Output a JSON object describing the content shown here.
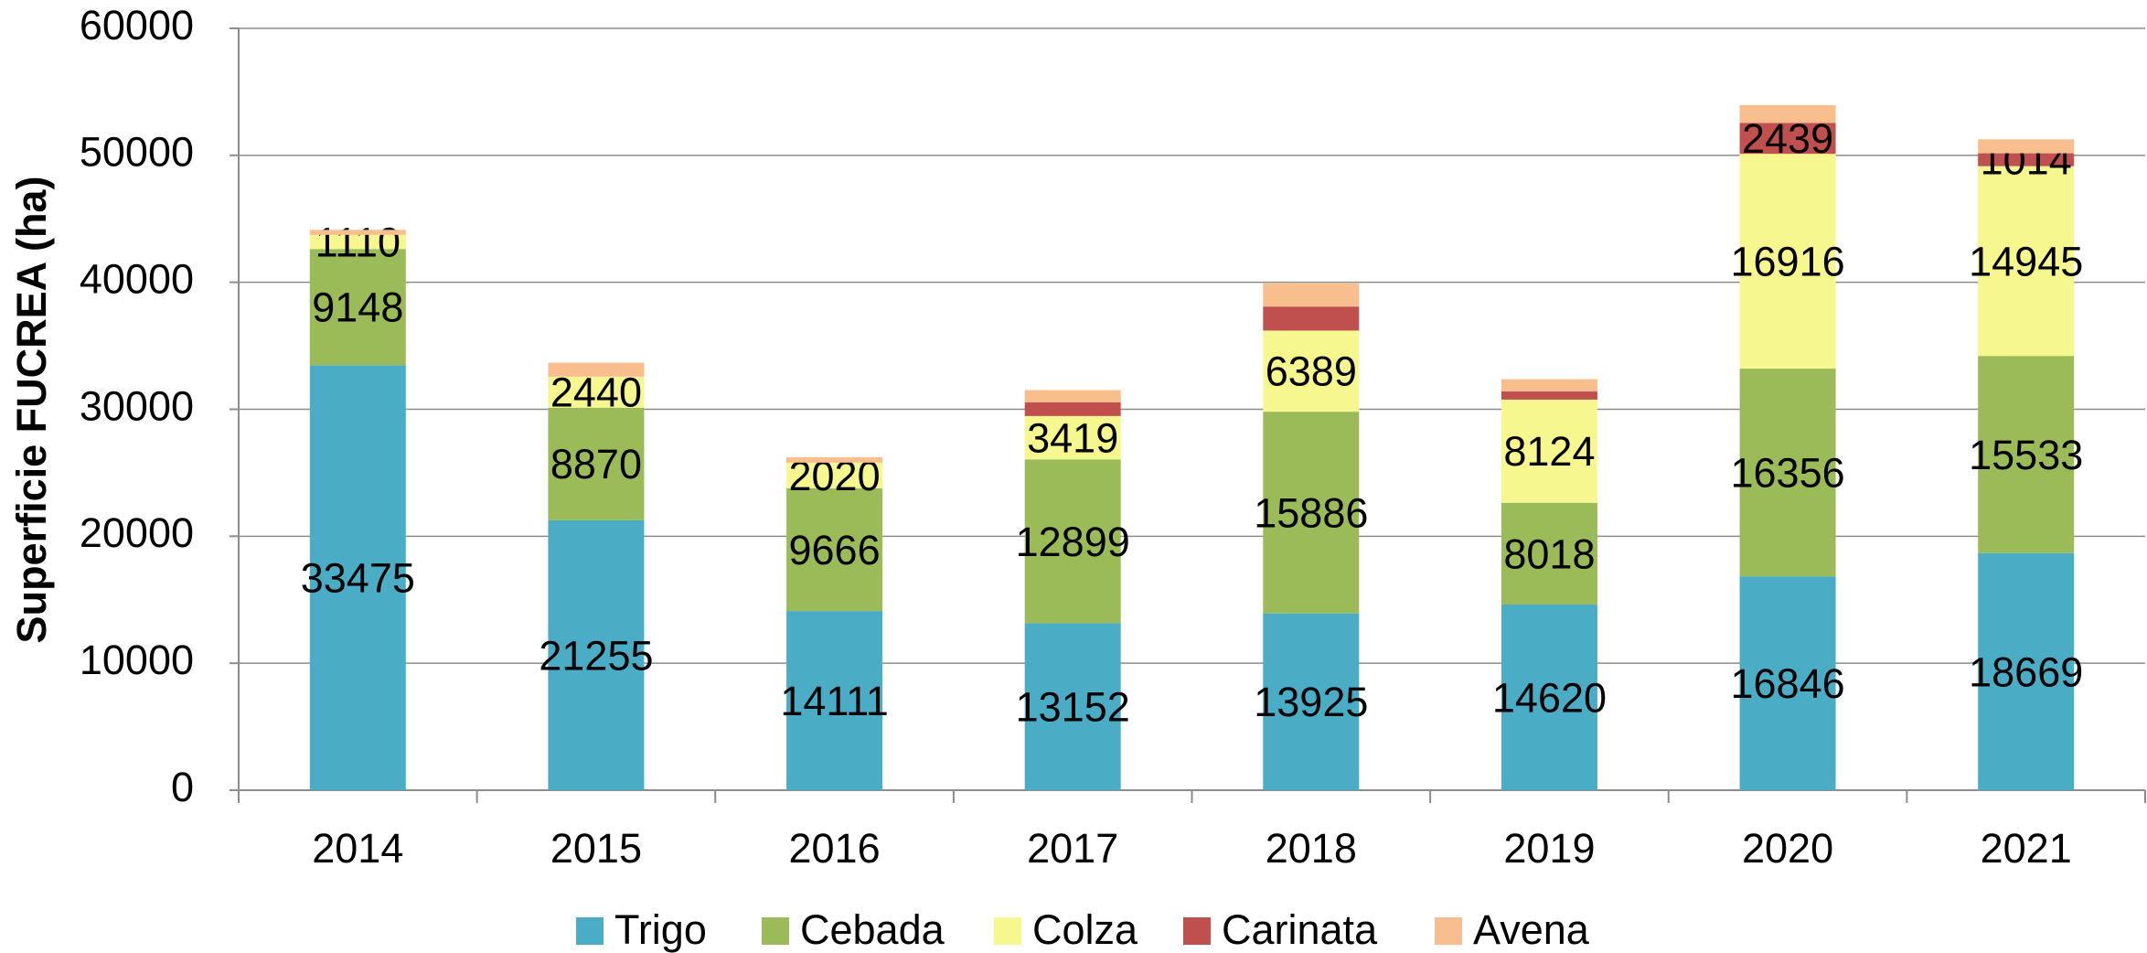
{
  "chart_data": {
    "type": "stacked_bar",
    "y_label": "Superficie FUCREA (ha)",
    "categories": [
      "2014",
      "2015",
      "2016",
      "2017",
      "2018",
      "2019",
      "2020",
      "2021"
    ],
    "series": [
      {
        "name": "Trigo",
        "color": "#4bacc6",
        "values": [
          33475,
          21255,
          14111,
          13152,
          13925,
          14620,
          16846,
          18669
        ],
        "value_labels": [
          "33475",
          "21255",
          "14111",
          "13152",
          "13925",
          "14620",
          "16846",
          "18669"
        ]
      },
      {
        "name": "Cebada",
        "color": "#9bbb59",
        "values": [
          9148,
          8870,
          9666,
          12899,
          15886,
          8018,
          16356,
          15533
        ],
        "value_labels": [
          "9148",
          "8870",
          "9666",
          "12899",
          "15886",
          "8018",
          "16356",
          "15533"
        ]
      },
      {
        "name": "Colza",
        "color": "#f7f78f",
        "values": [
          1110,
          2440,
          2020,
          3419,
          6389,
          8124,
          16916,
          14945
        ],
        "value_labels": [
          "1110",
          "2440",
          "2020",
          "3419",
          "6389",
          "8124",
          "16916",
          "14945"
        ]
      },
      {
        "name": "Carinata",
        "color": "#c0504d",
        "values": [
          0,
          0,
          0,
          1070,
          1890,
          640,
          2439,
          1014
        ],
        "value_labels": [
          null,
          null,
          null,
          null,
          null,
          null,
          "2439",
          "1014"
        ]
      },
      {
        "name": "Avena",
        "color": "#f9be8e",
        "values": [
          400,
          1100,
          430,
          970,
          1830,
          970,
          1400,
          1100
        ],
        "value_labels": [
          null,
          null,
          null,
          null,
          null,
          null,
          null,
          null
        ]
      }
    ],
    "ylim": [
      0,
      60000
    ],
    "yticks": [
      0,
      10000,
      20000,
      30000,
      40000,
      50000,
      60000
    ],
    "grid": true,
    "legend": "bottom"
  }
}
